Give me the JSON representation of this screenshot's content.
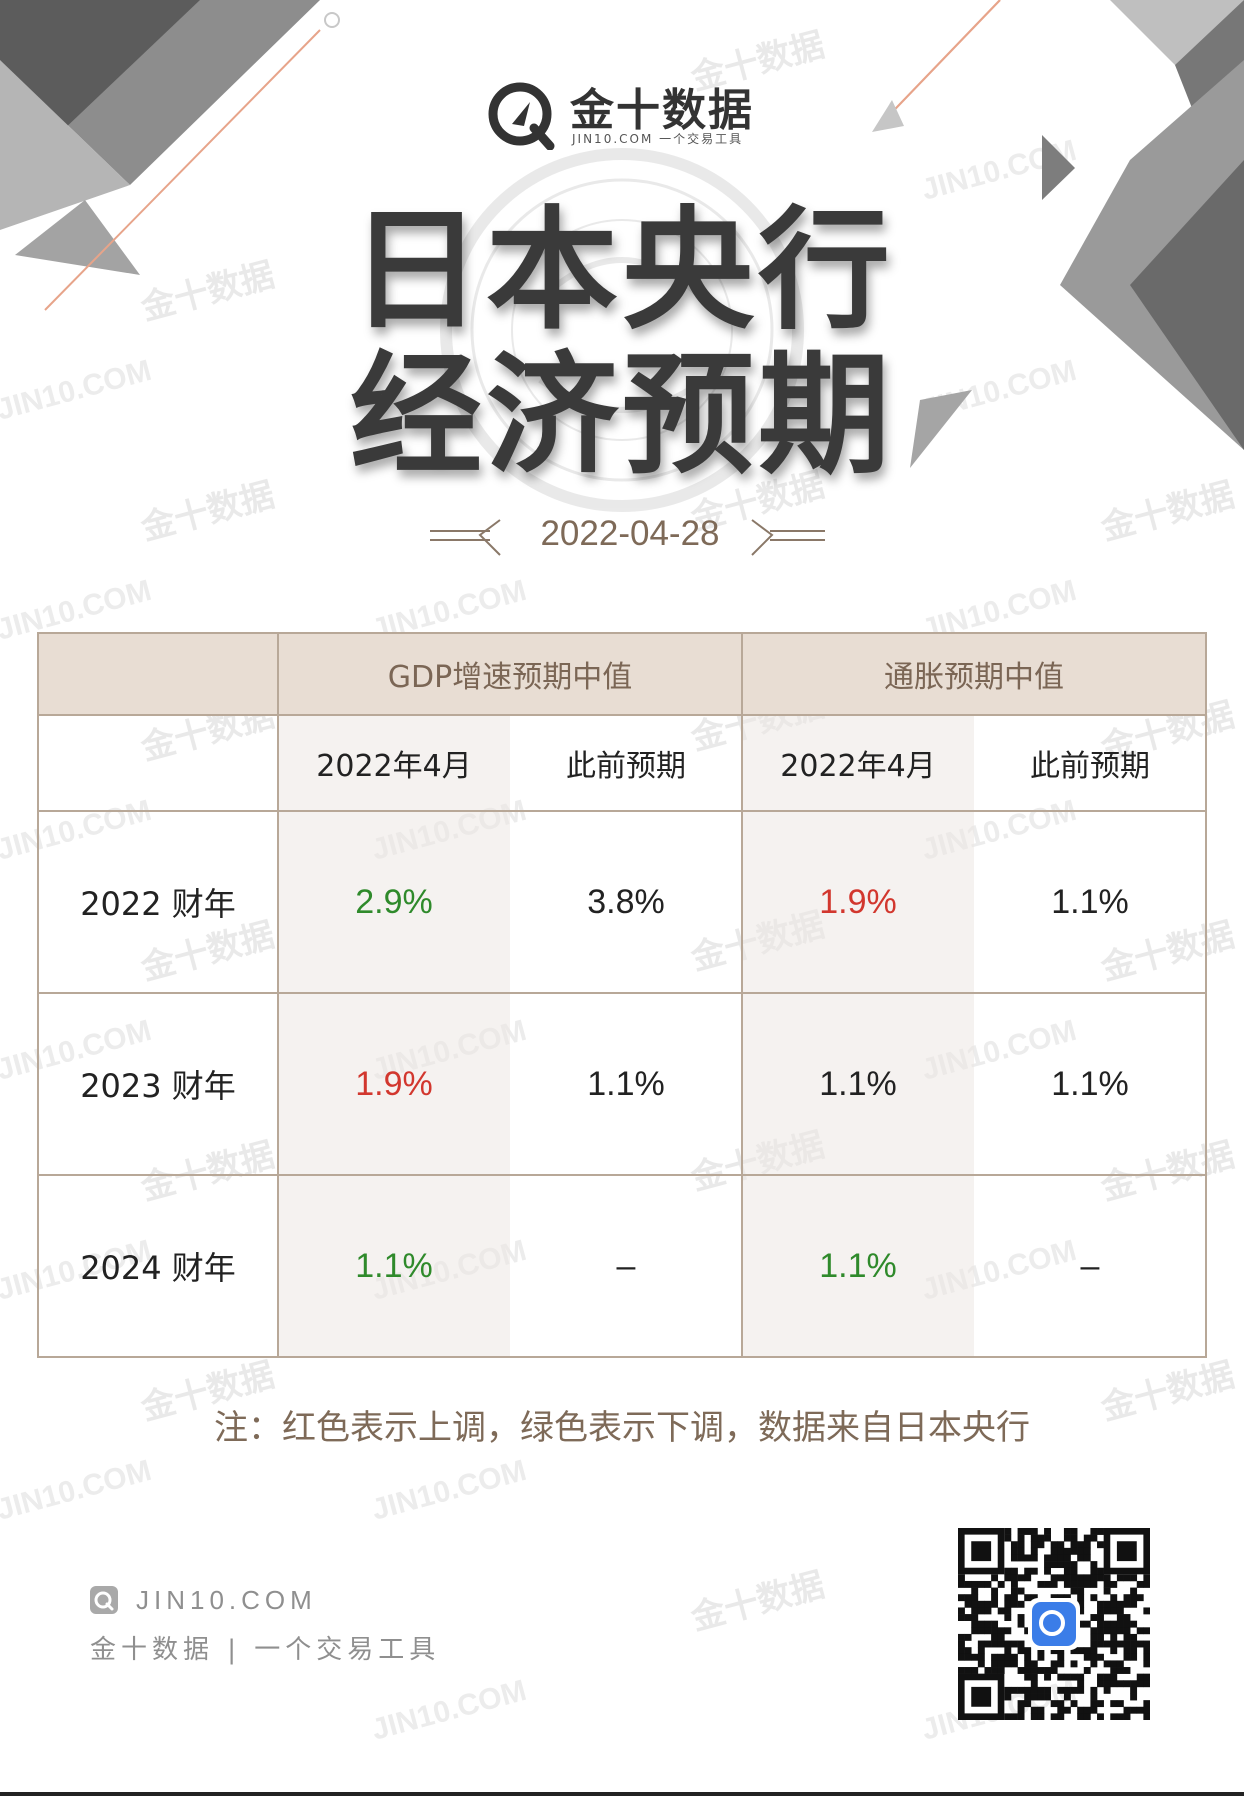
{
  "brand": {
    "name": "金十数据",
    "sub": "JIN10.COM 一个交易工具"
  },
  "title": {
    "line1": "日本央行",
    "line2": "经济预期"
  },
  "date": "2022-04-28",
  "table": {
    "group_headers": [
      "GDP增速预期中值",
      "通胀预期中值"
    ],
    "sub_headers": [
      "2022年4月",
      "此前预期",
      "2022年4月",
      "此前预期"
    ],
    "rows": [
      {
        "label": "2022 财年",
        "cells": [
          {
            "value": "2.9%",
            "trend": "down"
          },
          {
            "value": "3.8%",
            "trend": "neutral"
          },
          {
            "value": "1.9%",
            "trend": "up"
          },
          {
            "value": "1.1%",
            "trend": "neutral"
          }
        ]
      },
      {
        "label": "2023 财年",
        "cells": [
          {
            "value": "1.9%",
            "trend": "up"
          },
          {
            "value": "1.1%",
            "trend": "neutral"
          },
          {
            "value": "1.1%",
            "trend": "neutral"
          },
          {
            "value": "1.1%",
            "trend": "neutral"
          }
        ]
      },
      {
        "label": "2024 财年",
        "cells": [
          {
            "value": "1.1%",
            "trend": "down"
          },
          {
            "value": "–",
            "trend": "neutral"
          },
          {
            "value": "1.1%",
            "trend": "down"
          },
          {
            "value": "–",
            "trend": "neutral"
          }
        ]
      }
    ]
  },
  "note": "注：红色表示上调，绿色表示下调，数据来自日本央行",
  "footer": {
    "site": "JIN10.COM",
    "tagline": "金十数据 | 一个交易工具"
  },
  "watermark": {
    "cn": "金十数据",
    "en": "JIN10.COM"
  },
  "colors": {
    "up": "#d2372e",
    "down": "#2f8a2b",
    "header_bg": "#e8ddd3",
    "accent_text": "#7e6a58"
  },
  "icons": [
    "jin10-logo-icon",
    "qr-code-icon"
  ]
}
